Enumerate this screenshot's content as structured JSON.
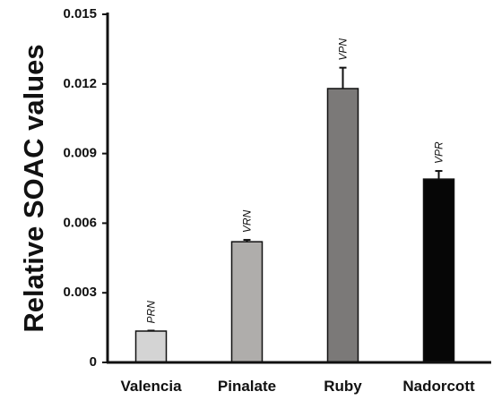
{
  "chart_data": {
    "type": "bar",
    "title": "",
    "xlabel": "",
    "ylabel": "Relative SOAC values",
    "ylim": [
      0,
      0.015
    ],
    "yticks": [
      0,
      0.003,
      0.006,
      0.009,
      0.012,
      0.015
    ],
    "ytick_labels": [
      "0",
      "0.003",
      "0.006",
      "0.009",
      "0.012",
      "0.015"
    ],
    "grid": false,
    "categories": [
      "Valencia",
      "Pinalate",
      "Ruby",
      "Nadorcott"
    ],
    "values": [
      0.00135,
      0.0052,
      0.0118,
      0.0079
    ],
    "errors": [
      2e-05,
      8e-05,
      0.0009,
      0.00035
    ],
    "annotations": [
      "PRN",
      "VRN",
      "VPN",
      "VPR"
    ],
    "bar_colors": [
      "#d4d4d4",
      "#afadab",
      "#7b7978",
      "#060606"
    ]
  }
}
